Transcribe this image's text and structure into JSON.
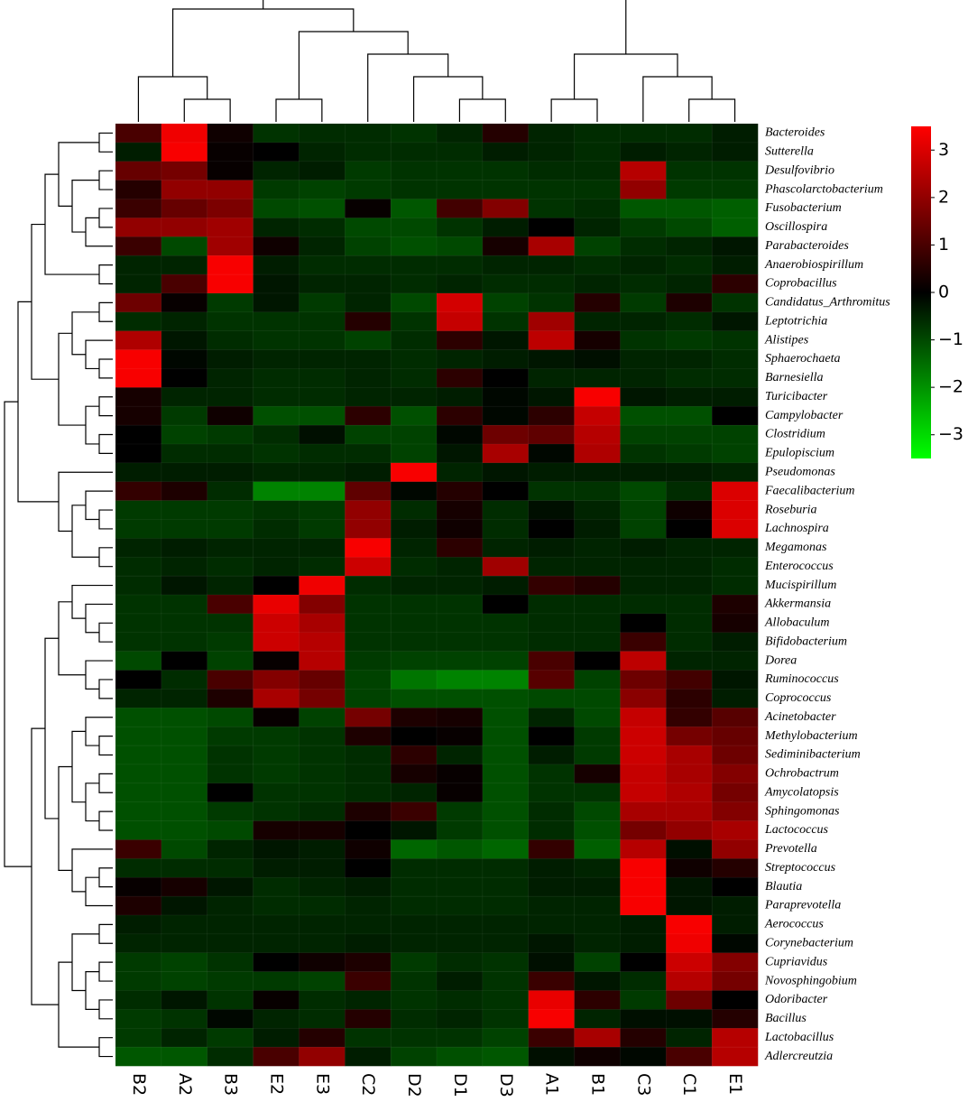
{
  "chart_data": {
    "type": "heatmap",
    "columns": [
      "B2",
      "A2",
      "B3",
      "E2",
      "E3",
      "C2",
      "D2",
      "D1",
      "D3",
      "A1",
      "B1",
      "C3",
      "C1",
      "E1"
    ],
    "rows": [
      "Bacteroides",
      "Sutterella",
      "Desulfovibrio",
      "Phascolarctobacterium",
      "Fusobacterium",
      "Oscillospira",
      "Parabacteroides",
      "Anaerobiospirillum",
      "Coprobacillus",
      "Candidatus_Arthromitus",
      "Leptotrichia",
      "Alistipes",
      "Sphaerochaeta",
      "Barnesiella",
      "Turicibacter",
      "Campylobacter",
      "Clostridium",
      "Epulopiscium",
      "Pseudomonas",
      "Faecalibacterium",
      "Roseburia",
      "Lachnospira",
      "Megamonas",
      "Enterococcus",
      "Mucispirillum",
      "Akkermansia",
      "Allobaculum",
      "Bifidobacterium",
      "Dorea",
      "Ruminococcus",
      "Coprococcus",
      "Acinetobacter",
      "Methylobacterium",
      "Sediminibacterium",
      "Ochrobactrum",
      "Amycolatopsis",
      "Sphingomonas",
      "Lactococcus",
      "Prevotella",
      "Streptococcus",
      "Blautia",
      "Paraprevotella",
      "Aerococcus",
      "Corynebacterium",
      "Cupriavidus",
      "Novosphingobium",
      "Odoribacter",
      "Bacillus",
      "Lactobacillus",
      "Adlercreutzia"
    ],
    "values": [
      [
        1,
        3.3,
        0.2,
        -0.7,
        -0.6,
        -0.6,
        -0.7,
        -0.5,
        0.5,
        -0.5,
        -0.6,
        -0.6,
        -0.6,
        -0.4
      ],
      [
        -0.4,
        3.4,
        0.1,
        0,
        -0.5,
        -0.6,
        -0.6,
        -0.6,
        -0.4,
        -0.5,
        -0.6,
        -0.4,
        -0.5,
        -0.4
      ],
      [
        1.4,
        1.6,
        0.1,
        -0.5,
        -0.4,
        -0.8,
        -0.7,
        -0.7,
        -0.7,
        -0.6,
        -0.6,
        2.5,
        -0.7,
        -0.7
      ],
      [
        0.5,
        2,
        2,
        -0.8,
        -0.9,
        -0.8,
        -0.7,
        -0.7,
        -0.7,
        -0.7,
        -0.7,
        2,
        -0.8,
        -0.8
      ],
      [
        0.8,
        1.4,
        1.7,
        -1,
        -1.1,
        0.1,
        -1.2,
        0.9,
        1.8,
        -0.7,
        -0.6,
        -1.2,
        -1.2,
        -1.3
      ],
      [
        2,
        2,
        2.2,
        -0.5,
        -0.6,
        -1,
        -1,
        -0.7,
        -0.4,
        0,
        -0.5,
        -0.8,
        -1,
        -1.3
      ],
      [
        0.8,
        -1,
        2.2,
        0.2,
        -0.5,
        -0.9,
        -1.1,
        -1,
        0.3,
        2.3,
        -0.9,
        -0.6,
        -0.5,
        -0.3
      ],
      [
        -0.5,
        -0.5,
        3.4,
        -0.4,
        -0.6,
        -0.6,
        -0.6,
        -0.6,
        -0.5,
        -0.5,
        -0.6,
        -0.5,
        -0.6,
        -0.4
      ],
      [
        -0.5,
        1,
        3.4,
        -0.3,
        -0.5,
        -0.5,
        -0.6,
        -0.5,
        -0.6,
        -0.6,
        -0.5,
        -0.6,
        -0.5,
        0.6
      ],
      [
        1.5,
        0.1,
        -0.8,
        -0.3,
        -0.8,
        -0.5,
        -1,
        2.9,
        -0.9,
        -0.7,
        0.5,
        -0.8,
        0.4,
        -0.7
      ],
      [
        -0.6,
        -0.5,
        -0.7,
        -0.7,
        -0.7,
        0.5,
        -0.7,
        2.7,
        -0.7,
        2.2,
        -0.5,
        -0.5,
        -0.6,
        -0.3
      ],
      [
        2.4,
        -0.3,
        -0.6,
        -0.7,
        -0.7,
        -0.9,
        -0.6,
        0.6,
        -0.3,
        2.6,
        0.3,
        -0.7,
        -0.8,
        -0.7
      ],
      [
        3.4,
        -0.1,
        -0.4,
        -0.5,
        -0.5,
        -0.5,
        -0.6,
        -0.5,
        -0.4,
        -0.3,
        -0.2,
        -0.5,
        -0.5,
        -0.6
      ],
      [
        3.4,
        0,
        -0.5,
        -0.6,
        -0.6,
        -0.5,
        -0.6,
        0.6,
        0,
        -0.5,
        -0.5,
        -0.5,
        -0.6,
        -0.6
      ],
      [
        0.3,
        -0.5,
        -0.5,
        -0.6,
        -0.6,
        -0.5,
        -0.5,
        -0.4,
        -0.1,
        -0.3,
        3.4,
        -0.3,
        -0.4,
        -0.4
      ],
      [
        0.3,
        -0.8,
        0.2,
        -1.1,
        -1.1,
        0.6,
        -1.1,
        0.6,
        -0.1,
        0.6,
        2.7,
        -1.1,
        -1.1,
        0
      ],
      [
        0,
        -0.9,
        -0.8,
        -0.6,
        -0.2,
        -0.9,
        -0.9,
        -0.1,
        1.5,
        1.3,
        2.5,
        -0.9,
        -0.9,
        -0.9
      ],
      [
        0,
        -0.6,
        -0.6,
        -0.7,
        -0.6,
        -0.6,
        -0.9,
        -0.3,
        2.3,
        -0.1,
        2.4,
        -0.7,
        -0.8,
        -0.9
      ],
      [
        -0.4,
        -0.4,
        -0.4,
        -0.5,
        -0.5,
        -0.4,
        3.4,
        -0.5,
        -0.3,
        -0.4,
        -0.4,
        -0.4,
        -0.4,
        -0.5
      ],
      [
        0.7,
        0.4,
        -0.6,
        -1.8,
        -1.8,
        1.3,
        -0.1,
        0.5,
        0,
        -0.7,
        -0.7,
        -1,
        -0.6,
        3
      ],
      [
        -0.8,
        -0.8,
        -0.8,
        -0.7,
        -0.8,
        2,
        -0.6,
        0.3,
        -0.6,
        -0.2,
        -0.5,
        -0.9,
        0.2,
        3
      ],
      [
        -0.8,
        -0.8,
        -0.8,
        -0.6,
        -0.8,
        2,
        -0.4,
        0.2,
        -0.6,
        0,
        -0.4,
        -0.9,
        0,
        3
      ],
      [
        -0.5,
        -0.4,
        -0.5,
        -0.5,
        -0.5,
        3.4,
        -0.5,
        0.6,
        -0.5,
        -0.4,
        -0.5,
        -0.4,
        -0.5,
        -0.5
      ],
      [
        -0.6,
        -0.5,
        -0.6,
        -0.5,
        -0.6,
        2.8,
        -0.6,
        -0.5,
        2.2,
        -0.5,
        -0.5,
        -0.5,
        -0.5,
        -0.6
      ],
      [
        -0.6,
        -0.3,
        -0.5,
        0,
        3.3,
        -0.6,
        -0.5,
        -0.5,
        -0.4,
        0.7,
        0.5,
        -0.5,
        -0.5,
        -0.6
      ],
      [
        -0.7,
        -0.7,
        1,
        3.2,
        1.8,
        -0.7,
        -0.7,
        -0.7,
        0,
        -0.6,
        -0.6,
        -0.6,
        -0.6,
        0.4
      ],
      [
        -0.7,
        -0.7,
        -0.7,
        2.8,
        2.3,
        -0.7,
        -0.7,
        -0.7,
        -0.7,
        -0.6,
        -0.6,
        0,
        -0.6,
        0.3
      ],
      [
        -0.7,
        -0.7,
        -0.8,
        2.8,
        2.5,
        -0.7,
        -0.7,
        -0.7,
        -0.7,
        -0.6,
        -0.6,
        0.8,
        -0.6,
        -0.4
      ],
      [
        -1,
        0,
        -0.9,
        0.1,
        2.5,
        -0.8,
        -0.9,
        -0.9,
        -0.9,
        1,
        0,
        2.6,
        -0.5,
        -0.5
      ],
      [
        0,
        -0.6,
        1,
        1.8,
        1.4,
        -0.9,
        -1.6,
        -1.8,
        -1.8,
        1.2,
        -0.9,
        1.5,
        0.9,
        -0.3
      ],
      [
        -0.5,
        -0.5,
        0.4,
        2.3,
        1.6,
        -0.9,
        -1.1,
        -1.1,
        -1.1,
        -1,
        -1,
        1.9,
        0.6,
        -0.4
      ],
      [
        -1.1,
        -1.1,
        -1,
        0.1,
        -0.9,
        1.6,
        0.4,
        0.3,
        -1.1,
        -0.5,
        -1,
        2.7,
        0.7,
        1.2
      ],
      [
        -1.1,
        -1.1,
        -0.8,
        -0.8,
        -0.7,
        0.4,
        0,
        0.1,
        -1.1,
        0,
        -0.8,
        2.8,
        1.6,
        1.4
      ],
      [
        -1.1,
        -1.1,
        -0.7,
        -0.8,
        -0.7,
        -0.6,
        0.6,
        -0.5,
        -1.1,
        -0.4,
        -0.8,
        2.8,
        2.3,
        1.5
      ],
      [
        -1.1,
        -1.1,
        -0.7,
        -0.8,
        -0.7,
        -0.6,
        0.3,
        0.1,
        -1.1,
        -0.7,
        0.3,
        2.7,
        2.3,
        1.8
      ],
      [
        -1.1,
        -1.1,
        0,
        -0.7,
        -0.7,
        -0.6,
        -0.5,
        0.1,
        -1.1,
        -0.7,
        -0.7,
        2.7,
        2.4,
        1.6
      ],
      [
        -1.1,
        -1.1,
        -0.8,
        -0.7,
        -0.6,
        0.4,
        0.8,
        -0.8,
        -1.1,
        -0.6,
        -1,
        2.3,
        2.3,
        1.8
      ],
      [
        -1.1,
        -1.1,
        -1,
        0.3,
        0.3,
        0,
        -0.3,
        -0.8,
        -1.1,
        -0.6,
        -1.1,
        1.6,
        2,
        2.3
      ],
      [
        0.8,
        -1,
        -0.5,
        -0.3,
        -0.4,
        0.2,
        -1.4,
        -1.2,
        -1.4,
        0.7,
        -1.3,
        2.5,
        -0.2,
        2
      ],
      [
        -0.6,
        -0.6,
        -0.6,
        -0.4,
        -0.4,
        0,
        -0.6,
        -0.6,
        -0.6,
        -0.4,
        -0.5,
        3.4,
        0.2,
        0.5
      ],
      [
        0.1,
        0.3,
        -0.3,
        -0.6,
        -0.5,
        -0.4,
        -0.6,
        -0.6,
        -0.6,
        -0.4,
        -0.4,
        3.4,
        -0.3,
        0
      ],
      [
        0.4,
        -0.3,
        -0.5,
        -0.6,
        -0.6,
        -0.5,
        -0.6,
        -0.6,
        -0.6,
        -0.5,
        -0.5,
        3.4,
        -0.3,
        -0.4
      ],
      [
        -0.4,
        -0.5,
        -0.5,
        -0.5,
        -0.5,
        -0.5,
        -0.5,
        -0.5,
        -0.5,
        -0.5,
        -0.5,
        -0.4,
        3.4,
        -0.4
      ],
      [
        -0.5,
        -0.5,
        -0.5,
        -0.5,
        -0.5,
        -0.4,
        -0.5,
        -0.5,
        -0.5,
        -0.3,
        -0.5,
        -0.4,
        3.3,
        -0.1
      ],
      [
        -0.8,
        -0.9,
        -0.7,
        0,
        0.2,
        0.4,
        -0.8,
        -0.6,
        -0.7,
        -0.2,
        -0.9,
        0,
        2.8,
        1.8
      ],
      [
        -0.8,
        -0.9,
        -0.8,
        -0.8,
        -0.9,
        0.8,
        -0.7,
        -0.4,
        -0.7,
        0.8,
        -0.3,
        -0.6,
        2.5,
        1.6
      ],
      [
        -0.6,
        -0.3,
        -0.7,
        0.1,
        -0.6,
        -0.5,
        -0.7,
        -0.6,
        -0.7,
        3.2,
        0.6,
        -0.8,
        1.5,
        0
      ],
      [
        -0.8,
        -0.7,
        -0.1,
        -0.5,
        -0.6,
        0.5,
        -0.6,
        -0.5,
        -0.7,
        3.4,
        -0.5,
        -0.2,
        -0.2,
        0.5
      ],
      [
        -0.8,
        -0.5,
        -0.8,
        -0.4,
        0.5,
        -0.7,
        -0.7,
        -0.7,
        -0.9,
        0.8,
        2.3,
        0.5,
        -0.5,
        2.5
      ],
      [
        -1.2,
        -1.2,
        -0.6,
        1,
        2,
        -0.4,
        -0.9,
        -1.1,
        -1.2,
        -0.2,
        0.2,
        -0.1,
        1,
        2.5
      ]
    ],
    "clim": [
      -3.5,
      3.5
    ],
    "colorbar_ticks": [
      3,
      2,
      1,
      0,
      {
        "value": -1,
        "label": "−1"
      },
      {
        "value": -2,
        "label": "−2"
      },
      {
        "value": -3,
        "label": "−3"
      }
    ]
  }
}
